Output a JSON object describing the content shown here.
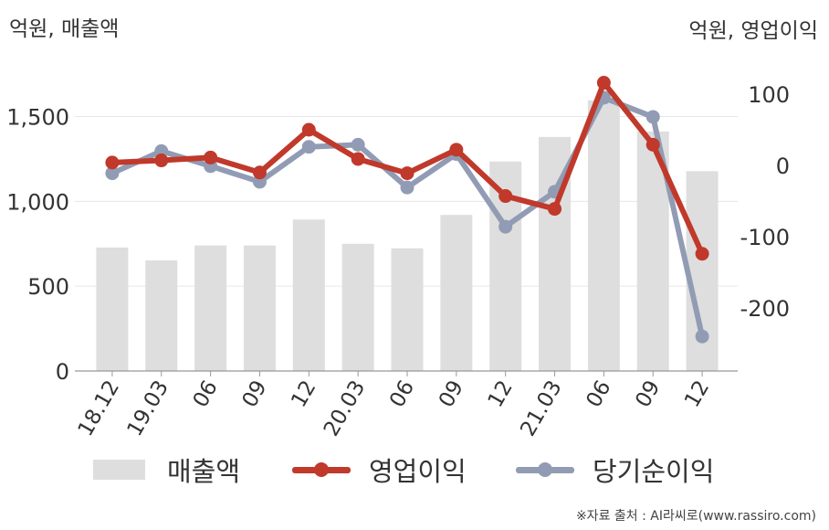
{
  "chart_data": {
    "type": "bar",
    "categories": [
      "18.12",
      "19.03",
      "06",
      "09",
      "12",
      "20.03",
      "06",
      "09",
      "12",
      "21.03",
      "06",
      "09",
      "12"
    ],
    "series": [
      {
        "name": "매출액",
        "type": "bar",
        "axis": "left",
        "color": "#dedede",
        "values": [
          728,
          652,
          740,
          740,
          893,
          750,
          723,
          920,
          1235,
          1380,
          1595,
          1412,
          1178
        ]
      },
      {
        "name": "영업이익",
        "type": "line",
        "axis": "right",
        "color": "#c0392b",
        "values": [
          4,
          7,
          11,
          -10,
          50,
          9,
          -11,
          22,
          -43,
          -61,
          116,
          29,
          -124
        ]
      },
      {
        "name": "당기순이익",
        "type": "line",
        "axis": "right",
        "color": "#919cb4",
        "values": [
          -11,
          20,
          -1,
          -23,
          26,
          29,
          -31,
          16,
          -86,
          -37,
          95,
          68,
          -240
        ]
      }
    ],
    "left_axis": {
      "unit": "억원, 매출액",
      "ticks": [
        "0",
        "500",
        "1,000",
        "1,500"
      ],
      "range": [
        0,
        1740
      ]
    },
    "right_axis": {
      "unit": "억원, 영업이익",
      "ticks": [
        "-200",
        "-100",
        "0",
        "100"
      ],
      "range": [
        -275,
        145
      ]
    },
    "grid": true,
    "legend_position": "bottom"
  },
  "legend": [
    "매출액",
    "영업이익",
    "당기순이익"
  ],
  "source": "※자료 출처 : AI라씨로(www.rassiro.com)"
}
